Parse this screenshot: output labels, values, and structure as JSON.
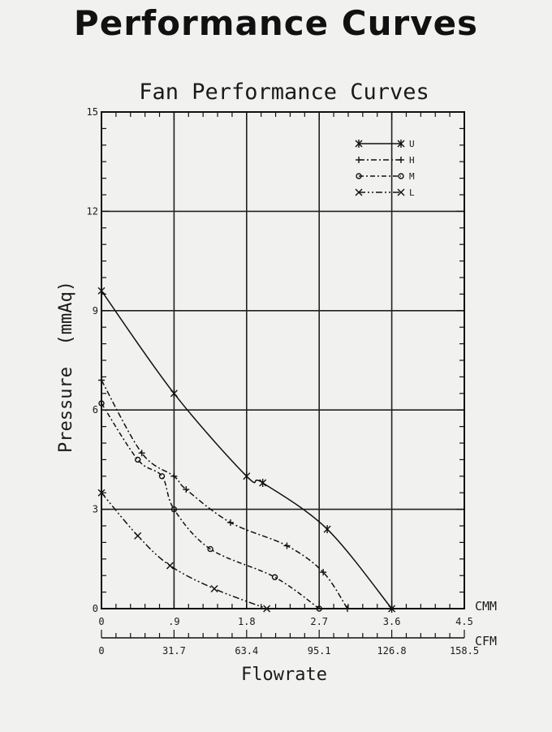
{
  "page": {
    "title": "Performance Curves"
  },
  "chart_data": {
    "type": "line",
    "title": "Fan Performance Curves",
    "xlabel": "Flowrate",
    "ylabel": "Pressure  (mmAq)",
    "xlim": [
      0,
      4.5
    ],
    "ylim": [
      0,
      15
    ],
    "x_unit": "CMM",
    "x_ticks": [
      0,
      0.9,
      1.8,
      2.7,
      3.6,
      4.5
    ],
    "x_tick_labels": [
      "0",
      ".9",
      "1.8",
      "2.7",
      "3.6",
      "4.5"
    ],
    "y_ticks": [
      0,
      3,
      6,
      9,
      12,
      15
    ],
    "y_tick_labels": [
      "0",
      "3",
      "6",
      "9",
      "12",
      "15"
    ],
    "secondary_x_axis": {
      "unit": "CFM",
      "ticks": [
        0,
        31.7,
        63.4,
        95.1,
        126.8,
        158.5
      ],
      "tick_labels": [
        "0",
        "31.7",
        "63.4",
        "95.1",
        "126.8",
        "158.5"
      ]
    },
    "grid": true,
    "legend_position": "top-right",
    "series": [
      {
        "name": "U",
        "marker": "star",
        "dash": "",
        "x": [
          0,
          0.9,
          1.8,
          2.0,
          2.8,
          3.6
        ],
        "y": [
          9.6,
          6.5,
          4.0,
          3.8,
          2.4,
          0
        ]
      },
      {
        "name": "H",
        "marker": "plus",
        "dash": "7 3 2 3",
        "x": [
          0,
          0.5,
          0.9,
          1.05,
          1.6,
          2.3,
          2.75,
          3.05
        ],
        "y": [
          6.9,
          4.7,
          4.0,
          3.6,
          2.6,
          1.9,
          1.1,
          0
        ]
      },
      {
        "name": "M",
        "marker": "circle",
        "dash": "6 3 2 3",
        "x": [
          0,
          0.45,
          0.75,
          0.9,
          1.35,
          2.15,
          2.7
        ],
        "y": [
          6.2,
          4.5,
          4.0,
          3.0,
          1.8,
          0.95,
          0
        ]
      },
      {
        "name": "L",
        "marker": "x",
        "dash": "8 3 2 3 2 3",
        "x": [
          0,
          0.45,
          0.85,
          1.4,
          2.05
        ],
        "y": [
          3.5,
          2.2,
          1.3,
          0.6,
          0
        ]
      }
    ]
  }
}
